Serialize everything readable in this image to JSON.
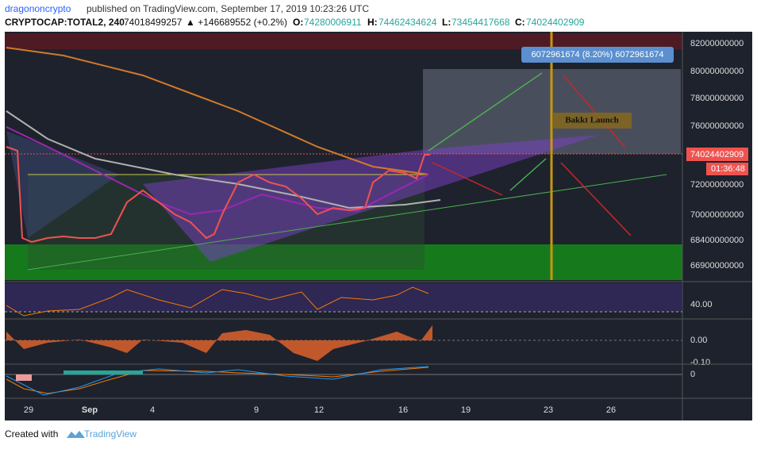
{
  "header": {
    "publisher": "dragononcrypto",
    "published": "published on TradingView.com, September 17, 2019 10:23:26 UTC",
    "symbol": "CRYPTOCAP:TOTAL2, 240",
    "last": "74018499257",
    "change": "▲ +146689552 (+0.2%)",
    "ohlc": [
      {
        "label": "O:",
        "value": "74280006911"
      },
      {
        "label": "H:",
        "value": "74462434624"
      },
      {
        "label": "L:",
        "value": "73454417668"
      },
      {
        "label": "C:",
        "value": "74024402909"
      }
    ]
  },
  "price_axis": [
    "82000000000",
    "80000000000",
    "78000000000",
    "76000000000",
    "72000000000",
    "70000000000",
    "68400000000",
    "66900000000"
  ],
  "price_tag": "74024402909",
  "countdown": "01:36:48",
  "measure_label": "6072961674 (8.20%) 6072961674",
  "annotation": "Bakkt Launch",
  "rsi_axis": "40.00",
  "hist_axis": [
    "0.00",
    "-0.10"
  ],
  "macd_axis": "0",
  "time_axis": [
    "29",
    "Sep",
    "4",
    "9",
    "12",
    "16",
    "19",
    "23",
    "26"
  ],
  "footer": {
    "created": "Created with",
    "brand": "TradingView"
  }
}
